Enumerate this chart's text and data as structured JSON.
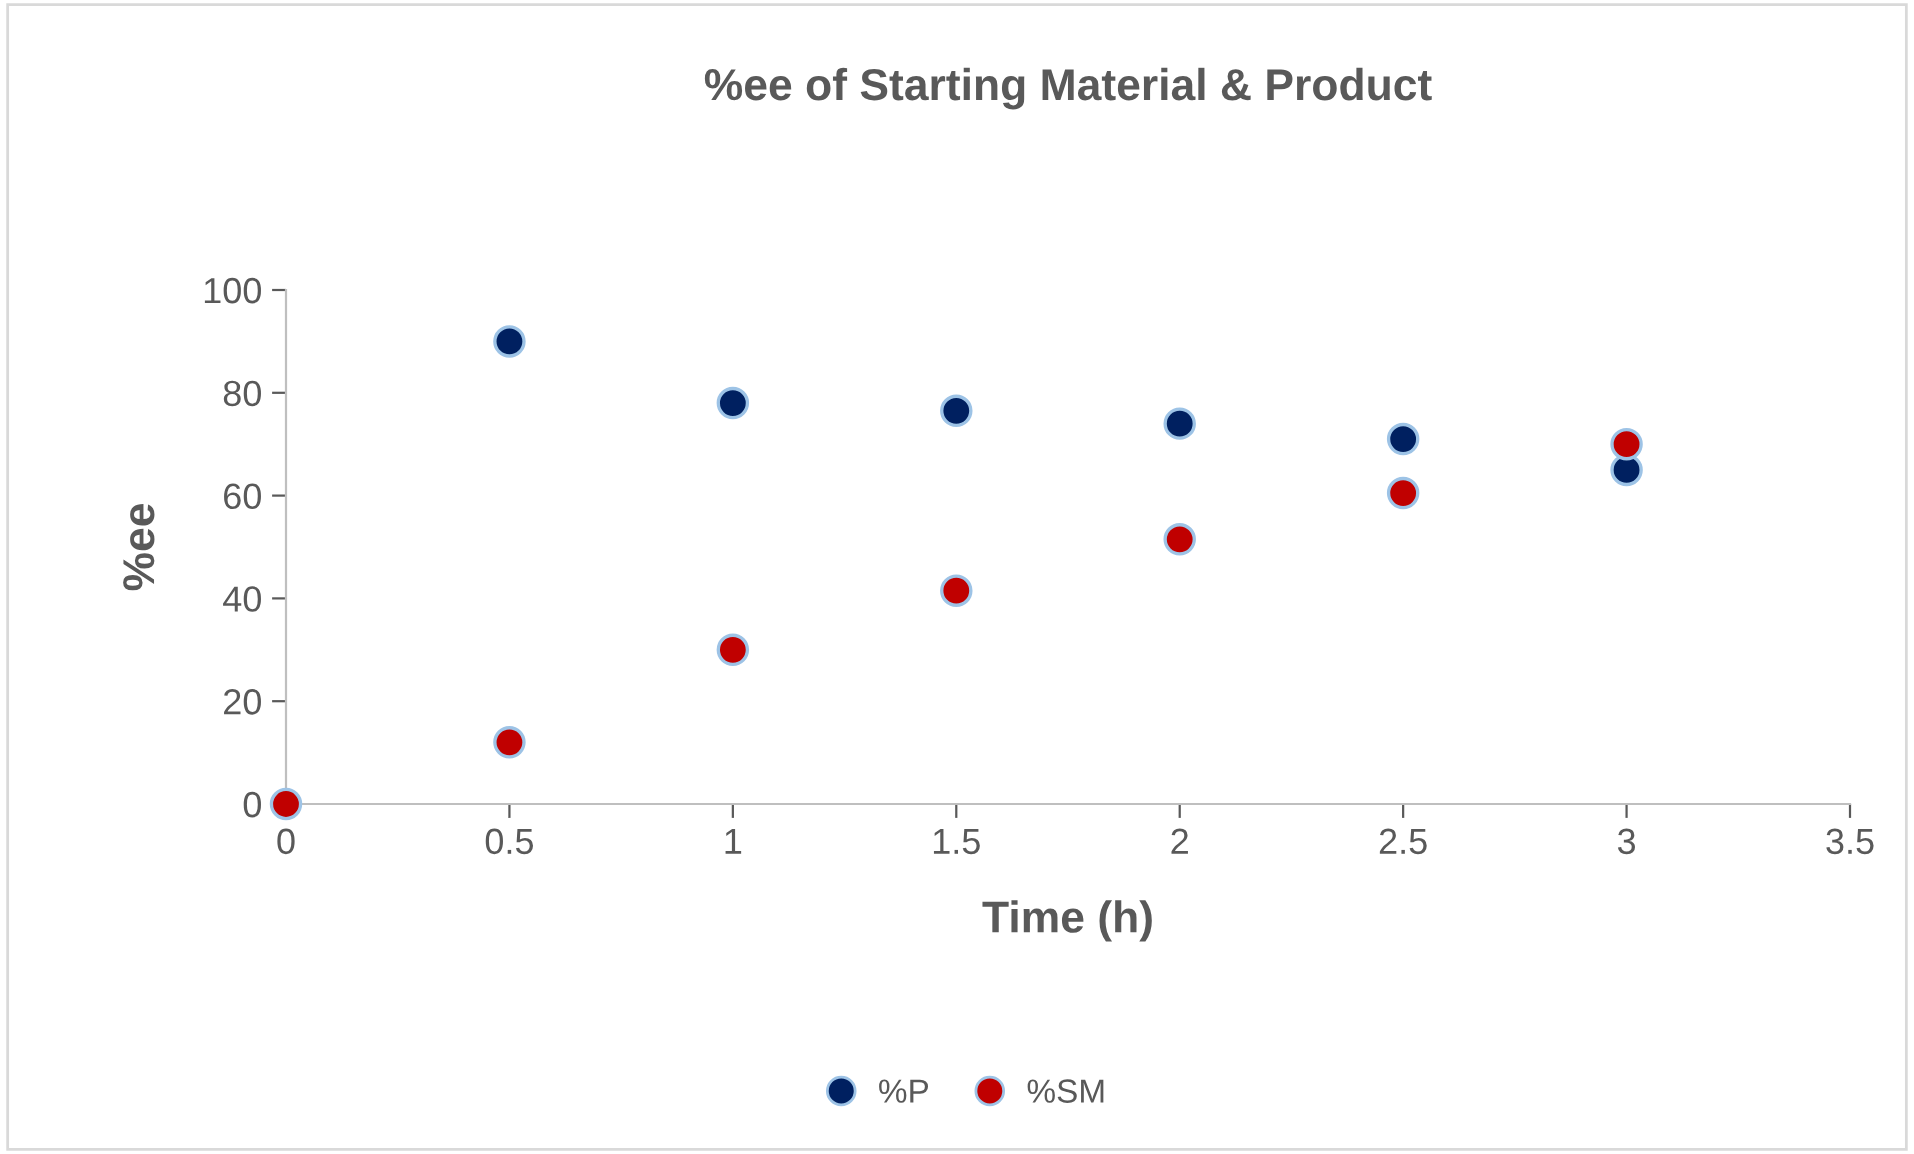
{
  "chart_data": {
    "type": "scatter",
    "title": "%ee of Starting Material & Product",
    "xlabel": "Time (h)",
    "ylabel": "%ee",
    "x": [
      0,
      0.5,
      1,
      1.5,
      2,
      2.5,
      3
    ],
    "series": [
      {
        "name": "%P",
        "color": "#002060",
        "values": [
          null,
          90,
          78,
          76.5,
          74,
          71,
          65
        ]
      },
      {
        "name": "%SM",
        "color": "#c00000",
        "values": [
          0,
          12,
          30,
          41.5,
          51.5,
          60.5,
          70
        ]
      }
    ],
    "xlim": [
      0,
      3.5
    ],
    "xticks": [
      0,
      0.5,
      1,
      1.5,
      2,
      2.5,
      3,
      3.5
    ],
    "ylim": [
      0,
      100
    ],
    "yticks": [
      0,
      20,
      40,
      60,
      80,
      100
    ],
    "grid": false,
    "legend": "bottom",
    "marker": "circle"
  }
}
